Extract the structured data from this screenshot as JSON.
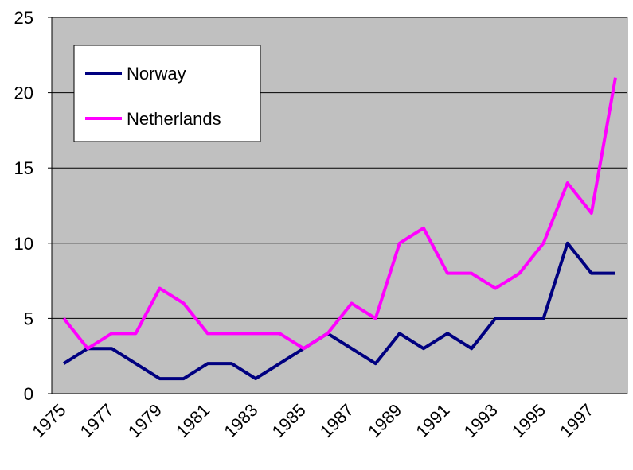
{
  "chart_data": {
    "type": "line",
    "categories": [
      "1975",
      null,
      "1977",
      null,
      "1979",
      null,
      "1981",
      null,
      "1983",
      null,
      "1985",
      null,
      "1987",
      null,
      "1989",
      null,
      "1991",
      null,
      "1993",
      null,
      "1995",
      null,
      "1997",
      null
    ],
    "series": [
      {
        "name": "Norway",
        "color": "#000080",
        "values": [
          2,
          3,
          3,
          2,
          1,
          1,
          2,
          2,
          1,
          2,
          3,
          4,
          3,
          2,
          4,
          3,
          4,
          3,
          5,
          5,
          5,
          10,
          8,
          8
        ]
      },
      {
        "name": "Netherlands",
        "color": "#ff00ff",
        "values": [
          5,
          3,
          4,
          4,
          7,
          6,
          4,
          4,
          4,
          4,
          3,
          4,
          6,
          5,
          10,
          11,
          8,
          8,
          7,
          8,
          10,
          14,
          12,
          21
        ]
      }
    ],
    "ylim": [
      0,
      25
    ],
    "yticks": [
      0,
      5,
      10,
      15,
      20,
      25
    ],
    "grid": true,
    "legend": "upper left"
  }
}
